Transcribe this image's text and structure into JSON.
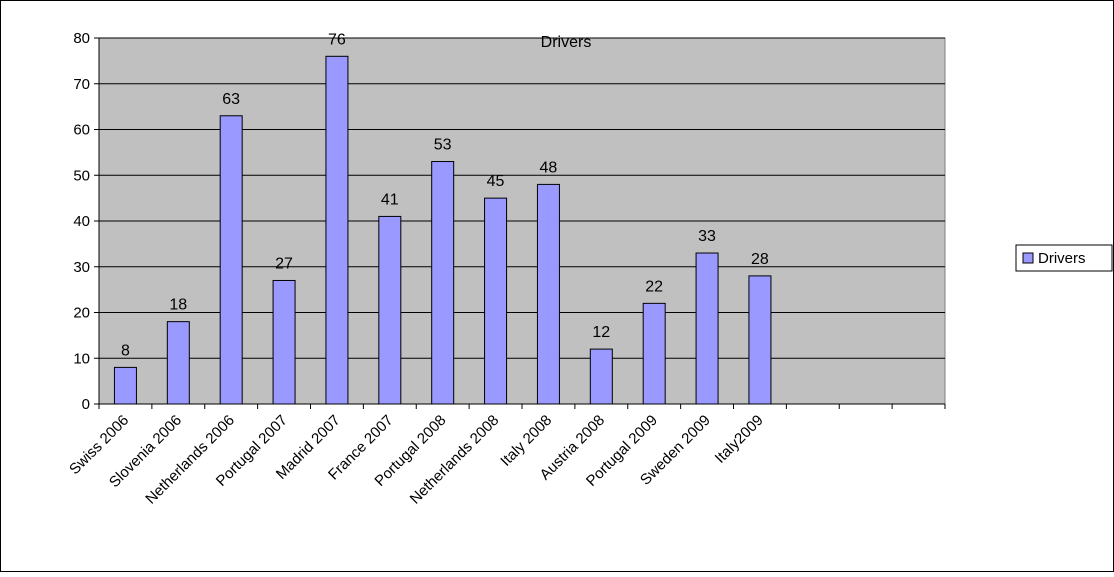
{
  "chart_data": {
    "type": "bar",
    "title": "Drivers",
    "categories": [
      "Swiss 2006",
      "Slovenia 2006",
      "Netherlands 2006",
      "Portugal 2007",
      "Madrid 2007",
      "France 2007",
      "Portugal 2008",
      "Netherlands 2008",
      "Italy 2008",
      "Austria 2008",
      "Portugal 2009",
      "Sweden 2009",
      "Italy2009",
      "",
      "",
      ""
    ],
    "series": [
      {
        "name": "Drivers",
        "values": [
          8,
          18,
          63,
          27,
          76,
          41,
          53,
          45,
          48,
          12,
          22,
          33,
          28,
          null,
          null,
          null
        ]
      }
    ],
    "data_labels": [
      "8",
      "18",
      "63",
      "27",
      "76",
      "41",
      "53",
      "45",
      "48",
      "12",
      "22",
      "33",
      "28"
    ],
    "ylim": [
      0,
      80
    ],
    "y_ticks": [
      0,
      10,
      20,
      30,
      40,
      50,
      60,
      70,
      80
    ],
    "grid": true,
    "legend": {
      "position": "right",
      "entries": [
        "Drivers"
      ]
    },
    "colors": {
      "bar_fill": "#9999ff",
      "bar_stroke": "#000000",
      "plot_background": "#c0c0c0",
      "gridline": "#000000"
    }
  }
}
